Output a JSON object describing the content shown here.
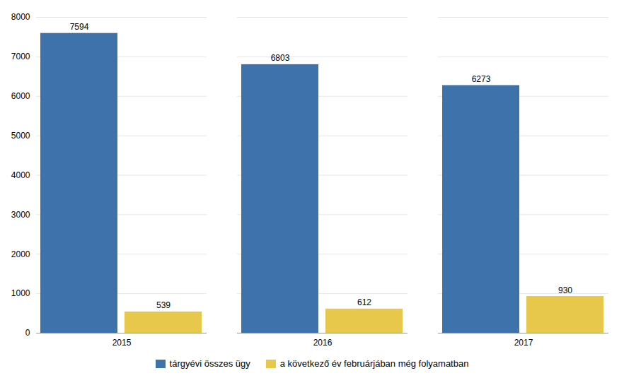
{
  "chart_data": {
    "type": "bar",
    "categories": [
      "2015",
      "2016",
      "2017"
    ],
    "series": [
      {
        "name": "tárgyévi összes ügy",
        "color": "#3D72AA",
        "values": [
          7594,
          6803,
          6273
        ]
      },
      {
        "name": "a következő év februárjában még folyamatban",
        "color": "#E8C84A",
        "values": [
          539,
          612,
          930
        ]
      }
    ],
    "ylim": [
      0,
      8000
    ],
    "yticks": [
      0,
      1000,
      2000,
      3000,
      4000,
      5000,
      6000,
      7000,
      8000
    ],
    "grid": true,
    "legend": "bottom",
    "data_labels": true
  }
}
